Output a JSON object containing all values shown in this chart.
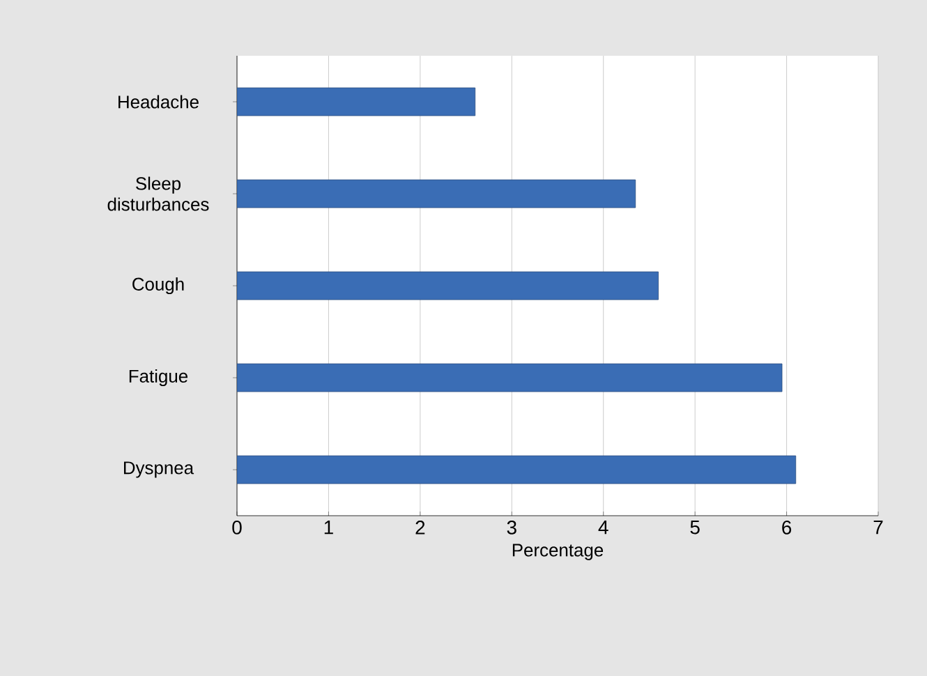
{
  "chart_data": {
    "type": "bar",
    "orientation": "horizontal",
    "xlabel": "Percentage",
    "categories": [
      "Headache",
      "Sleep disturbances",
      "Cough",
      "Fatigue",
      "Dyspnea"
    ],
    "values": [
      2.6,
      4.35,
      4.6,
      5.95,
      6.1
    ],
    "color": "#3a6db5",
    "xlim": [
      0,
      7
    ],
    "xticks": [
      0,
      1,
      2,
      3,
      4,
      5,
      6,
      7
    ],
    "grid": "x"
  }
}
